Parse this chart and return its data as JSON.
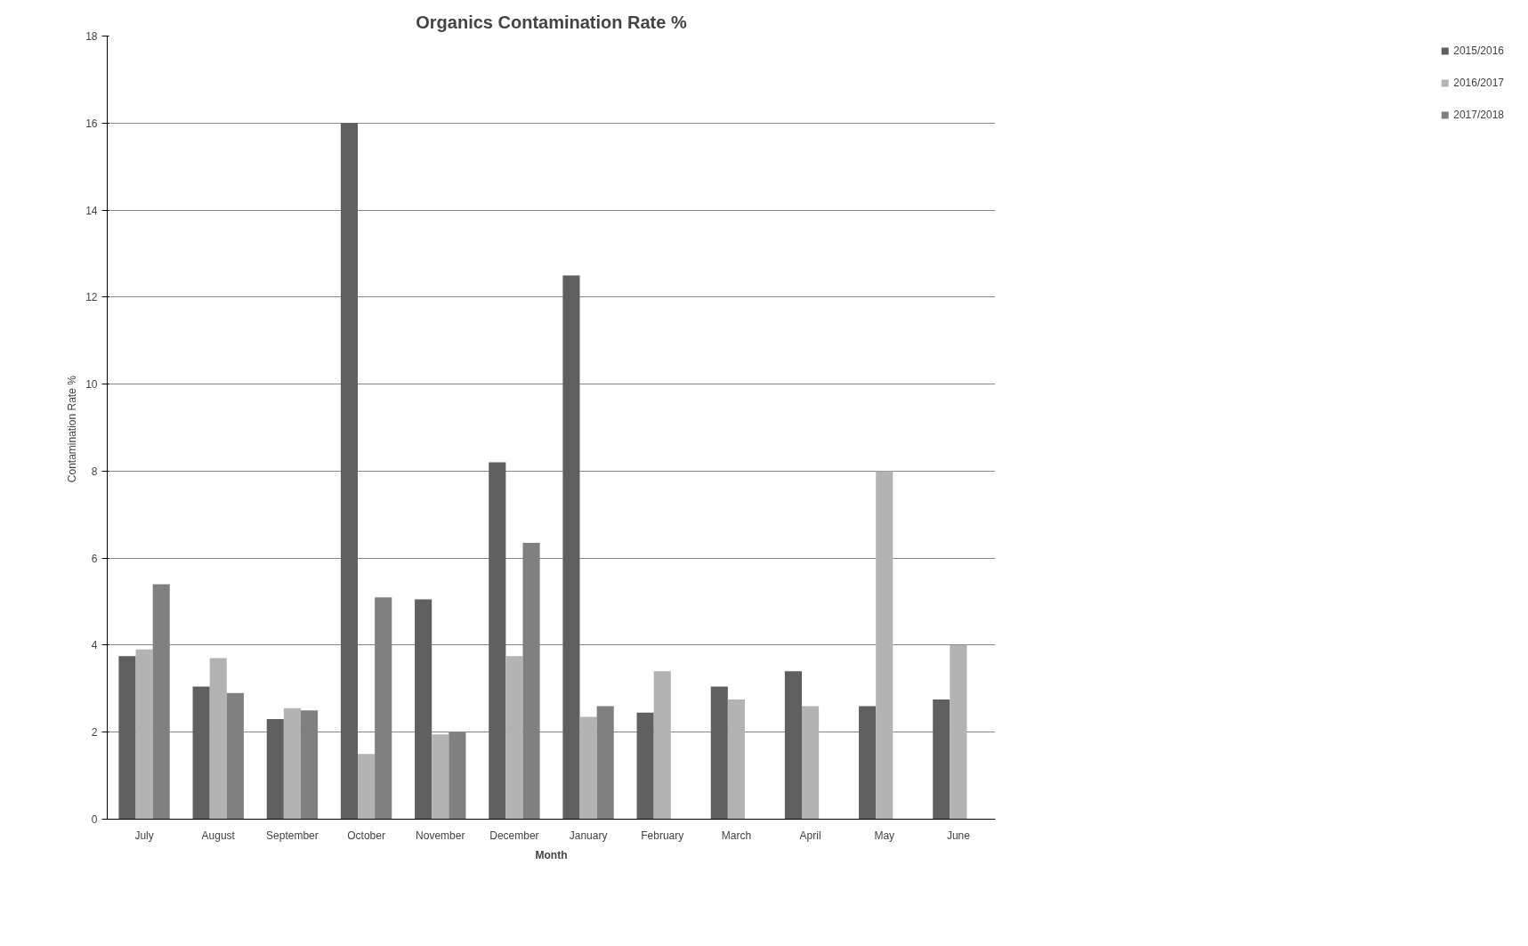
{
  "chart_data": {
    "type": "bar",
    "title": "Organics Contamination Rate %",
    "xlabel": "Month",
    "ylabel": "Contamination  Rate %",
    "categories": [
      "July",
      "August",
      "September",
      "October",
      "November",
      "December",
      "January",
      "February",
      "March",
      "April",
      "May",
      "June"
    ],
    "series": [
      {
        "name": "2015/2016",
        "color": "#606060",
        "values": [
          3.75,
          3.05,
          2.3,
          16,
          5.05,
          8.2,
          12.5,
          2.45,
          3.05,
          3.4,
          2.6,
          2.75
        ]
      },
      {
        "name": "2016/2017",
        "color": "#b3b3b3",
        "values": [
          3.9,
          3.7,
          2.55,
          1.5,
          1.95,
          3.75,
          2.35,
          3.4,
          2.75,
          2.6,
          8.0,
          4.0
        ]
      },
      {
        "name": "2017/2018",
        "color": "#808080",
        "values": [
          5.4,
          2.9,
          2.5,
          5.1,
          2.0,
          6.35,
          2.6,
          null,
          null,
          null,
          null,
          null
        ]
      }
    ],
    "ylim": [
      0,
      18
    ],
    "yticks": [
      0,
      2,
      4,
      6,
      8,
      10,
      12,
      14,
      16,
      18
    ],
    "grid": "y",
    "legend": "right"
  }
}
